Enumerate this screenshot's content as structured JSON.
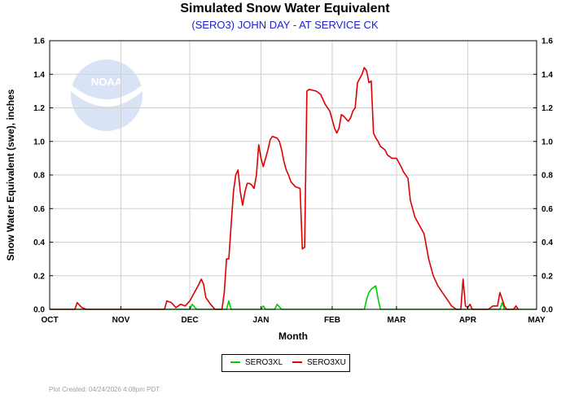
{
  "title": "Simulated Snow Water Equivalent",
  "subtitle": "(SERO3) JOHN DAY - AT SERVICE CK",
  "credit": "Plot Created: 04/24/2026 4:08pm PDT",
  "logo_text": "NOAA",
  "colors": {
    "red": "#dd0000",
    "green": "#00cc00",
    "grid": "#cfcfcf",
    "axis": "#000000"
  },
  "chart_data": {
    "type": "line",
    "title": "Simulated Snow Water Equivalent",
    "subtitle": "(SERO3) JOHN DAY - AT SERVICE CK",
    "xlabel": "Month",
    "ylabel": "Snow Water Equivalent (swe),  inches",
    "x_ticks": [
      "OCT",
      "NOV",
      "DEC",
      "JAN",
      "FEB",
      "MAR",
      "APR",
      "MAY"
    ],
    "xlim": [
      "2025-10-01",
      "2026-05-01"
    ],
    "ylim": [
      0,
      1.6
    ],
    "y_ticks": [
      "0.0",
      "0.2",
      "0.4",
      "0.6",
      "0.8",
      "1.0",
      "1.2",
      "1.4",
      "1.6"
    ],
    "grid": true,
    "legend_position": "bottom-center",
    "series": [
      {
        "name": "SERO3XL",
        "color": "#00cc00",
        "points": [
          [
            "2025-10-01",
            0
          ],
          [
            "2025-12-01",
            0
          ],
          [
            "2025-12-02",
            0.03
          ],
          [
            "2025-12-04",
            0
          ],
          [
            "2025-12-17",
            0
          ],
          [
            "2025-12-18",
            0.05
          ],
          [
            "2025-12-19",
            0
          ],
          [
            "2026-01-01",
            0
          ],
          [
            "2026-01-02",
            0.02
          ],
          [
            "2026-01-03",
            0
          ],
          [
            "2026-01-07",
            0
          ],
          [
            "2026-01-08",
            0.03
          ],
          [
            "2026-01-10",
            0
          ],
          [
            "2026-02-15",
            0
          ],
          [
            "2026-02-16",
            0.06
          ],
          [
            "2026-02-17",
            0.1
          ],
          [
            "2026-02-18",
            0.12
          ],
          [
            "2026-02-19",
            0.13
          ],
          [
            "2026-02-20",
            0.14
          ],
          [
            "2026-02-21",
            0.06
          ],
          [
            "2026-02-22",
            0
          ],
          [
            "2026-04-15",
            0
          ],
          [
            "2026-04-16",
            0.04
          ],
          [
            "2026-04-17",
            0
          ],
          [
            "2026-05-01",
            0
          ]
        ]
      },
      {
        "name": "SERO3XU",
        "color": "#dd0000",
        "points": [
          [
            "2025-10-01",
            0
          ],
          [
            "2025-10-12",
            0
          ],
          [
            "2025-10-13",
            0.04
          ],
          [
            "2025-10-15",
            0.01
          ],
          [
            "2025-10-17",
            0
          ],
          [
            "2025-11-20",
            0
          ],
          [
            "2025-11-21",
            0.05
          ],
          [
            "2025-11-23",
            0.04
          ],
          [
            "2025-11-25",
            0.01
          ],
          [
            "2025-11-27",
            0.03
          ],
          [
            "2025-11-29",
            0.02
          ],
          [
            "2025-12-01",
            0.05
          ],
          [
            "2025-12-03",
            0.1
          ],
          [
            "2025-12-05",
            0.15
          ],
          [
            "2025-12-06",
            0.18
          ],
          [
            "2025-12-07",
            0.15
          ],
          [
            "2025-12-08",
            0.07
          ],
          [
            "2025-12-10",
            0.03
          ],
          [
            "2025-12-12",
            0
          ],
          [
            "2025-12-15",
            0
          ],
          [
            "2025-12-16",
            0.1
          ],
          [
            "2025-12-17",
            0.3
          ],
          [
            "2025-12-18",
            0.3
          ],
          [
            "2025-12-19",
            0.5
          ],
          [
            "2025-12-20",
            0.7
          ],
          [
            "2025-12-21",
            0.8
          ],
          [
            "2025-12-22",
            0.83
          ],
          [
            "2025-12-23",
            0.7
          ],
          [
            "2025-12-24",
            0.62
          ],
          [
            "2025-12-25",
            0.7
          ],
          [
            "2025-12-26",
            0.75
          ],
          [
            "2025-12-27",
            0.75
          ],
          [
            "2025-12-28",
            0.74
          ],
          [
            "2025-12-29",
            0.72
          ],
          [
            "2025-12-30",
            0.8
          ],
          [
            "2025-12-31",
            0.98
          ],
          [
            "2026-01-01",
            0.9
          ],
          [
            "2026-01-02",
            0.85
          ],
          [
            "2026-01-03",
            0.9
          ],
          [
            "2026-01-04",
            0.95
          ],
          [
            "2026-01-05",
            1.01
          ],
          [
            "2026-01-06",
            1.03
          ],
          [
            "2026-01-08",
            1.02
          ],
          [
            "2026-01-09",
            1.0
          ],
          [
            "2026-01-10",
            0.95
          ],
          [
            "2026-01-11",
            0.88
          ],
          [
            "2026-01-12",
            0.83
          ],
          [
            "2026-01-13",
            0.8
          ],
          [
            "2026-01-14",
            0.76
          ],
          [
            "2026-01-16",
            0.73
          ],
          [
            "2026-01-18",
            0.72
          ],
          [
            "2026-01-19",
            0.36
          ],
          [
            "2026-01-20",
            0.37
          ],
          [
            "2026-01-21",
            1.3
          ],
          [
            "2026-01-22",
            1.31
          ],
          [
            "2026-01-25",
            1.3
          ],
          [
            "2026-01-27",
            1.28
          ],
          [
            "2026-01-29",
            1.22
          ],
          [
            "2026-01-31",
            1.18
          ],
          [
            "2026-02-02",
            1.08
          ],
          [
            "2026-02-03",
            1.05
          ],
          [
            "2026-02-04",
            1.08
          ],
          [
            "2026-02-05",
            1.16
          ],
          [
            "2026-02-06",
            1.15
          ],
          [
            "2026-02-08",
            1.12
          ],
          [
            "2026-02-09",
            1.14
          ],
          [
            "2026-02-10",
            1.18
          ],
          [
            "2026-02-11",
            1.2
          ],
          [
            "2026-02-12",
            1.35
          ],
          [
            "2026-02-14",
            1.4
          ],
          [
            "2026-02-15",
            1.44
          ],
          [
            "2026-02-16",
            1.42
          ],
          [
            "2026-02-17",
            1.35
          ],
          [
            "2026-02-18",
            1.36
          ],
          [
            "2026-02-19",
            1.05
          ],
          [
            "2026-02-20",
            1.02
          ],
          [
            "2026-02-21",
            1.0
          ],
          [
            "2026-02-22",
            0.97
          ],
          [
            "2026-02-24",
            0.95
          ],
          [
            "2026-02-25",
            0.92
          ],
          [
            "2026-02-27",
            0.9
          ],
          [
            "2026-03-01",
            0.9
          ],
          [
            "2026-03-03",
            0.85
          ],
          [
            "2026-03-04",
            0.82
          ],
          [
            "2026-03-06",
            0.78
          ],
          [
            "2026-03-07",
            0.65
          ],
          [
            "2026-03-09",
            0.55
          ],
          [
            "2026-03-11",
            0.5
          ],
          [
            "2026-03-13",
            0.45
          ],
          [
            "2026-03-15",
            0.3
          ],
          [
            "2026-03-17",
            0.2
          ],
          [
            "2026-03-19",
            0.14
          ],
          [
            "2026-03-21",
            0.1
          ],
          [
            "2026-03-23",
            0.06
          ],
          [
            "2026-03-25",
            0.02
          ],
          [
            "2026-03-27",
            0.0
          ],
          [
            "2026-03-29",
            0
          ],
          [
            "2026-03-30",
            0.18
          ],
          [
            "2026-03-31",
            0.02
          ],
          [
            "2026-04-01",
            0.01
          ],
          [
            "2026-04-02",
            0.03
          ],
          [
            "2026-04-03",
            0
          ],
          [
            "2026-04-10",
            0
          ],
          [
            "2026-04-12",
            0.02
          ],
          [
            "2026-04-14",
            0.02
          ],
          [
            "2026-04-15",
            0.1
          ],
          [
            "2026-04-16",
            0.06
          ],
          [
            "2026-04-17",
            0.02
          ],
          [
            "2026-04-18",
            0
          ],
          [
            "2026-04-21",
            0
          ],
          [
            "2026-04-22",
            0.02
          ],
          [
            "2026-04-23",
            0
          ]
        ]
      }
    ]
  }
}
